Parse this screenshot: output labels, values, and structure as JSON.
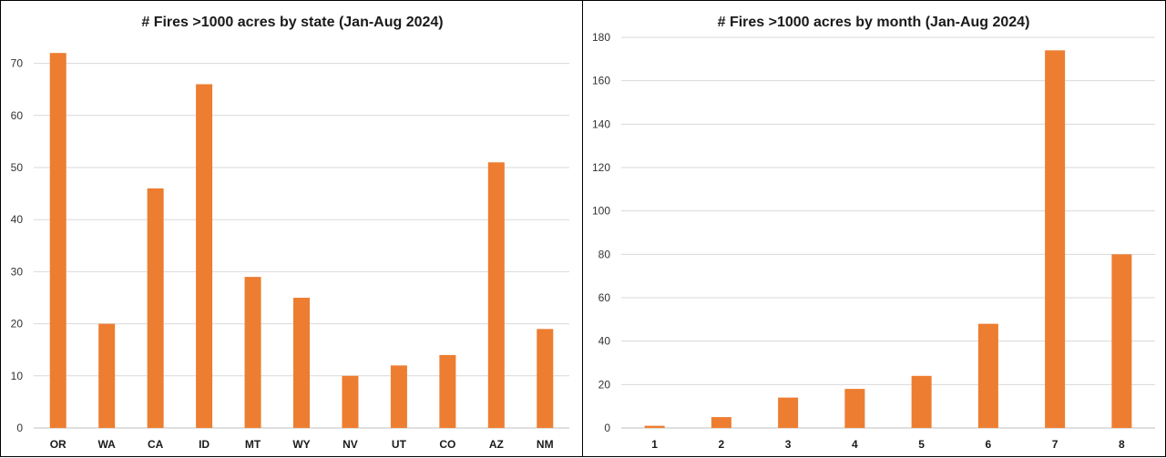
{
  "colors": {
    "bar": "#ED7D31",
    "grid": "#D9D9D9",
    "text": "#1A1A1A"
  },
  "chart_data": [
    {
      "type": "bar",
      "title": "# Fires >1000 acres by state (Jan-Aug 2024)",
      "xlabel": "",
      "ylabel": "",
      "categories": [
        "OR",
        "WA",
        "CA",
        "ID",
        "MT",
        "WY",
        "NV",
        "UT",
        "CO",
        "AZ",
        "NM"
      ],
      "values": [
        72,
        20,
        46,
        66,
        29,
        25,
        10,
        12,
        14,
        51,
        19
      ],
      "ylim": [
        0,
        75
      ],
      "yticks": [
        0,
        10,
        20,
        30,
        40,
        50,
        60,
        70
      ],
      "grid": true,
      "legend": "none"
    },
    {
      "type": "bar",
      "title": "# Fires >1000 acres by month (Jan-Aug 2024)",
      "xlabel": "",
      "ylabel": "",
      "categories": [
        "1",
        "2",
        "3",
        "4",
        "5",
        "6",
        "7",
        "8"
      ],
      "values": [
        1,
        5,
        14,
        18,
        24,
        48,
        174,
        80
      ],
      "ylim": [
        0,
        180
      ],
      "yticks": [
        0,
        20,
        40,
        60,
        80,
        100,
        120,
        140,
        160,
        180
      ],
      "grid": true,
      "legend": "none"
    }
  ]
}
